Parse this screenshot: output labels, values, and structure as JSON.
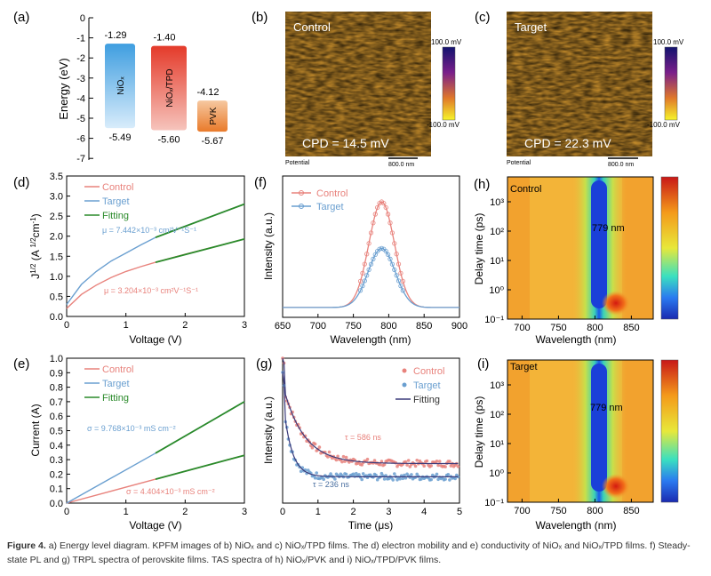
{
  "colors": {
    "control": "#e8827c",
    "target": "#6a9fd0",
    "fitting": "#2a8a2a",
    "fitting_dark": "#3a3a7a",
    "nio": "#3f9ee0",
    "tpd": "#e43a2a",
    "pvk": "#ef8a3a"
  },
  "panel_a": {
    "label": "(a)",
    "ylabel": "Energy (eV)",
    "yticks": [
      "0",
      "-1",
      "-2",
      "-3",
      "-4",
      "-5",
      "-6",
      "-7"
    ],
    "blocks": [
      {
        "name": "NiOₓ",
        "top": -1.29,
        "bottom": -5.49,
        "top_label": "-1.29",
        "bottom_label": "-5.49"
      },
      {
        "name": "NiOₓ/TPD",
        "top": -1.4,
        "bottom": -5.6,
        "top_label": "-1.40",
        "bottom_label": "-5.60"
      },
      {
        "name": "PVK",
        "top": -4.12,
        "bottom": -5.67,
        "top_label": "-4.12",
        "bottom_label": "-5.67"
      }
    ]
  },
  "panel_b": {
    "label": "(b)",
    "name": "Control",
    "cpd": "CPD = 14.5 mV",
    "scale_max": "100.0 mV",
    "scale_min": "-100.0 mV",
    "potential": "Potential",
    "scalebar": "800.0 nm"
  },
  "panel_c": {
    "label": "(c)",
    "name": "Target",
    "cpd": "CPD = 22.3 mV",
    "scale_max": "100.0 mV",
    "scale_min": "-100.0 mV",
    "potential": "Potential",
    "scalebar": "800.0 nm"
  },
  "chart_data": [
    {
      "id": "d",
      "label": "(d)",
      "type": "line",
      "xlabel": "Voltage (V)",
      "ylabel": "J^1/2 (A^1/2 cm^-1)",
      "xlim": [
        0,
        3
      ],
      "ylim": [
        0,
        3.5
      ],
      "xticks": [
        0,
        1,
        2,
        3
      ],
      "yticks": [
        0,
        0.5,
        1.0,
        1.5,
        2.0,
        2.5,
        3.0,
        3.5
      ],
      "legend": [
        "Control",
        "Target",
        "Fitting"
      ],
      "annotations": [
        "μ = 7.442×10⁻³ cm²V⁻¹S⁻¹",
        "μ = 3.204×10⁻³ cm²V⁻¹S⁻¹"
      ],
      "series": [
        {
          "name": "Control",
          "x": [
            0,
            0.25,
            0.5,
            0.75,
            1.0,
            1.25,
            1.5,
            2.0,
            2.5,
            3.0
          ],
          "values": [
            0.2,
            0.55,
            0.78,
            0.97,
            1.12,
            1.24,
            1.35,
            1.55,
            1.74,
            1.93
          ]
        },
        {
          "name": "Target",
          "x": [
            0,
            0.25,
            0.5,
            0.75,
            1.0,
            1.25,
            1.5,
            2.0,
            2.5,
            3.0
          ],
          "values": [
            0.3,
            0.8,
            1.12,
            1.38,
            1.58,
            1.78,
            1.97,
            2.25,
            2.52,
            2.8
          ]
        },
        {
          "name": "Fitting",
          "x": [
            1.5,
            3.0
          ],
          "values": [
            1.35,
            1.93
          ]
        },
        {
          "name": "Fitting",
          "x": [
            1.5,
            3.0
          ],
          "values": [
            1.97,
            2.8
          ]
        }
      ]
    },
    {
      "id": "e",
      "label": "(e)",
      "type": "line",
      "xlabel": "Voltage (V)",
      "ylabel": "Current (A)",
      "xlim": [
        0,
        3
      ],
      "ylim": [
        0,
        1.0
      ],
      "xticks": [
        0,
        1,
        2,
        3
      ],
      "yticks": [
        0.0,
        0.1,
        0.2,
        0.3,
        0.4,
        0.5,
        0.6,
        0.7,
        0.8,
        0.9,
        1.0
      ],
      "legend": [
        "Control",
        "Target",
        "Fitting"
      ],
      "annotations": [
        "σ = 9.768×10⁻³ mS cm⁻²",
        "σ = 4.404×10⁻³ mS cm⁻²"
      ],
      "series": [
        {
          "name": "Control",
          "x": [
            0,
            1.5,
            3.0
          ],
          "values": [
            0,
            0.165,
            0.33
          ]
        },
        {
          "name": "Target",
          "x": [
            0,
            1.5,
            3.0
          ],
          "values": [
            0,
            0.345,
            0.7
          ]
        },
        {
          "name": "Fitting",
          "x": [
            1.5,
            3.0
          ],
          "values": [
            0.165,
            0.33
          ]
        },
        {
          "name": "Fitting",
          "x": [
            1.5,
            3.0
          ],
          "values": [
            0.345,
            0.7
          ]
        }
      ]
    },
    {
      "id": "f",
      "label": "(f)",
      "type": "line",
      "xlabel": "Wavelength (nm)",
      "ylabel": "Intensity (a.u.)",
      "xlim": [
        650,
        900
      ],
      "ylim": [
        0,
        1.15
      ],
      "xticks": [
        650,
        700,
        750,
        800,
        850,
        900
      ],
      "legend": [
        "Control",
        "Target"
      ],
      "series": [
        {
          "name": "Control",
          "peak": 790,
          "width": 18,
          "values": [
            1.0
          ]
        },
        {
          "name": "Target",
          "peak": 790,
          "width": 19,
          "values": [
            0.56
          ]
        }
      ]
    },
    {
      "id": "g",
      "label": "(g)",
      "type": "scatter",
      "xlabel": "Time (μs)",
      "ylabel": "Intensity (a.u.)",
      "xlim": [
        0,
        5
      ],
      "ylim": [
        0,
        1.1
      ],
      "xticks": [
        0,
        1,
        2,
        3,
        4,
        5
      ],
      "legend": [
        "Control",
        "Target",
        "Fitting"
      ],
      "annotations": [
        "τ = 586 ns",
        "τ = 236 ns"
      ],
      "series": [
        {
          "name": "Control",
          "tau": 0.586,
          "values": [
            0.3
          ]
        },
        {
          "name": "Target",
          "tau": 0.236,
          "values": [
            0.2
          ]
        }
      ]
    },
    {
      "id": "h",
      "label": "(h)",
      "type": "heatmap",
      "name": "Control",
      "xlabel": "Wavelength (nm)",
      "ylabel": "Delay time (ps)",
      "xticks": [
        700,
        750,
        800,
        850
      ],
      "yticks": [
        "10³",
        "10²",
        "10¹",
        "10⁰",
        "10⁻¹"
      ],
      "annotation": "779 nm"
    },
    {
      "id": "i",
      "label": "(i)",
      "type": "heatmap",
      "name": "Target",
      "xlabel": "Wavelength (nm)",
      "ylabel": "Delay time (ps)",
      "xticks": [
        700,
        750,
        800,
        850
      ],
      "yticks": [
        "10³",
        "10²",
        "10¹",
        "10⁰",
        "10⁻¹"
      ],
      "annotation": "779 nm"
    }
  ],
  "caption": {
    "title": "Figure 4.",
    "text": "a) Energy level diagram. KPFM images of b) NiOₓ and c) NiOₓ/TPD films. The d) electron mobility and e) conductivity of NiOₓ and NiOₓ/TPD films. f) Steady-state PL and g) TRPL spectra of perovskite films. TAS spectra of h) NiOₓ/PVK and i) NiOₓ/TPD/PVK films."
  }
}
